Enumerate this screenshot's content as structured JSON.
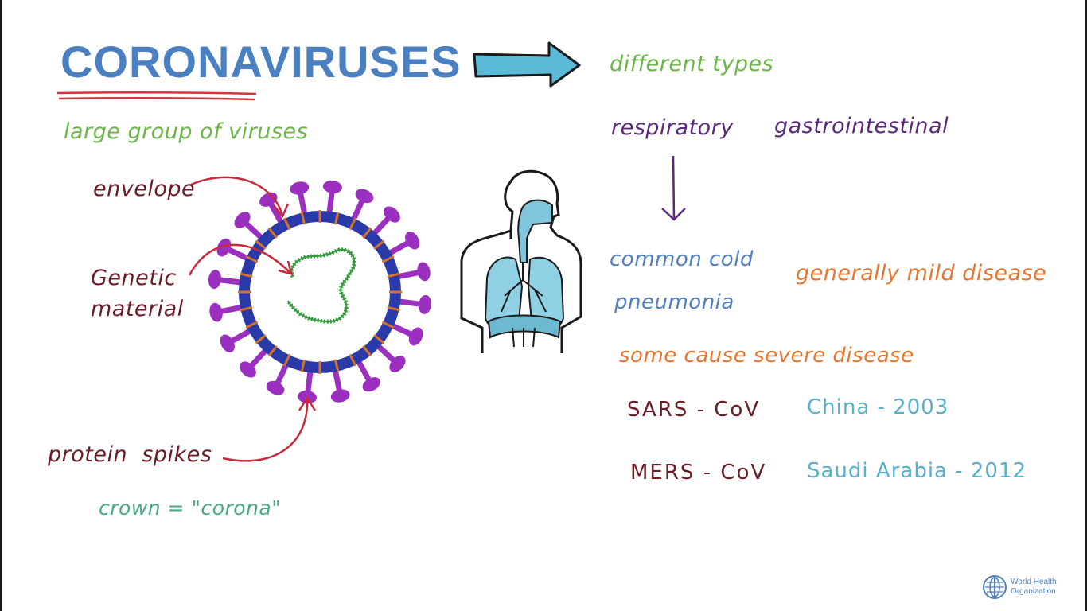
{
  "title": "CORONAVIRUSES",
  "subtitle": "large group of viruses",
  "diagram_labels": {
    "envelope": "envelope",
    "genetic_material": "Genetic\nmaterial",
    "protein_spikes": "protein  spikes",
    "crown": "crown = \"corona\""
  },
  "types": {
    "heading": "different types",
    "respiratory": "respiratory",
    "gastrointestinal": "gastrointestinal",
    "common_cold": "common cold",
    "pneumonia": "pneumonia",
    "mild": "generally mild disease",
    "severe": "some cause severe disease"
  },
  "examples": [
    {
      "virus": "SARS - CoV",
      "origin": "China - 2003"
    },
    {
      "virus": "MERS - CoV",
      "origin": "Saudi Arabia - 2012"
    }
  ],
  "logo": {
    "org_name": "World Health\nOrganization",
    "icon": "who-emblem-icon"
  },
  "colors": {
    "title_blue": "#4a7fc1",
    "underline_red": "#d6333a",
    "green": "#6ab648",
    "dark_red": "#6b1b24",
    "purple": "#5a2a7a",
    "violet_spike": "#9b2fc0",
    "envelope_blue": "#2a3aa8",
    "genetic_green": "#2e9a3a",
    "orange": "#e8742e",
    "steel_blue": "#4f7fbf",
    "teal": "#58b0c9",
    "crown_teal": "#4aa88a",
    "arrow_blue": "#5bbad8"
  }
}
